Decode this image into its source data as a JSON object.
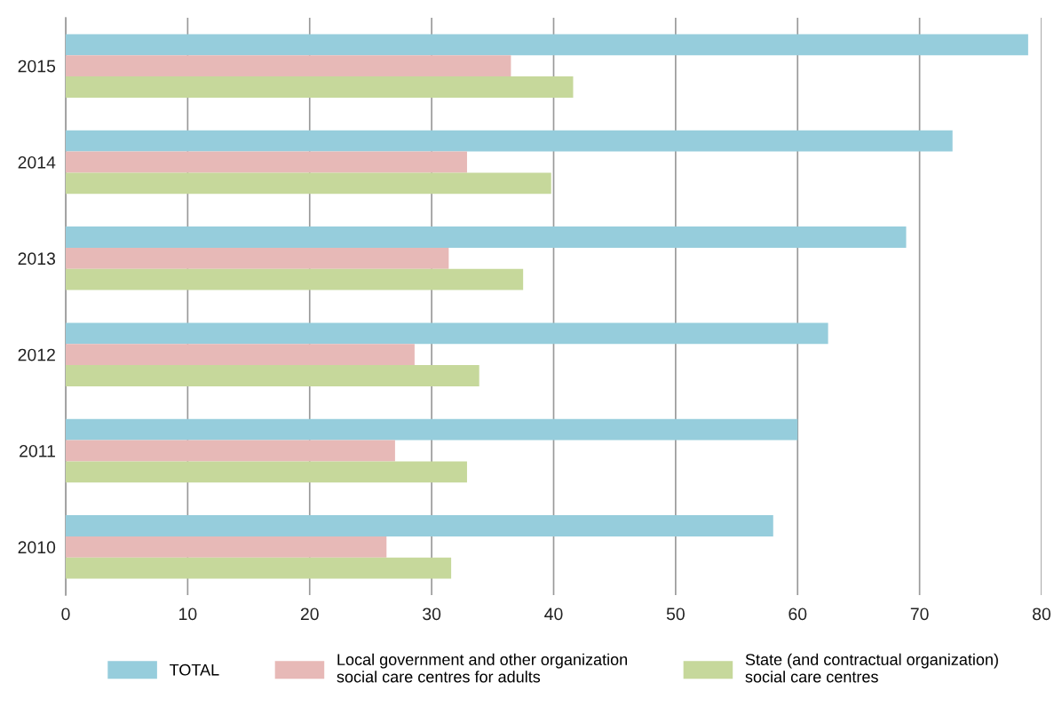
{
  "chart_data": {
    "type": "bar",
    "orientation": "horizontal",
    "categories": [
      "2015",
      "2014",
      "2013",
      "2012",
      "2011",
      "2010"
    ],
    "series": [
      {
        "name": "TOTAL",
        "color": "#96cddc",
        "values": [
          78.9,
          72.7,
          68.9,
          62.5,
          60,
          58
        ]
      },
      {
        "name": "Local government and other organization\nsocial care centres for adults",
        "color": "#e7b9b7",
        "values": [
          36.5,
          32.9,
          31.4,
          28.6,
          27.0,
          26.3
        ]
      },
      {
        "name": "State (and contractual organization)\nsocial care centres",
        "color": "#c6d89b",
        "values": [
          41.6,
          39.8,
          37.5,
          33.9,
          32.9,
          31.6
        ]
      }
    ],
    "xlim": [
      0,
      80
    ],
    "xticks": [
      0,
      10,
      20,
      30,
      40,
      50,
      60,
      70,
      80
    ],
    "grid": "x",
    "legend": "bottom"
  }
}
